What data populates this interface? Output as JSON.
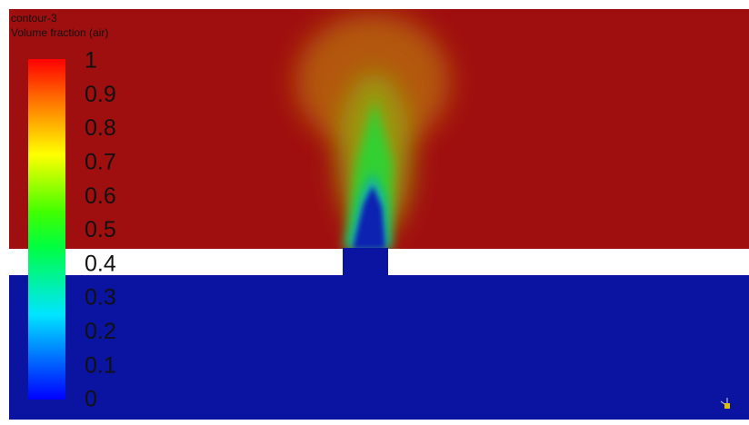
{
  "header": {
    "name": "contour-3",
    "field": "Volume fraction (air)"
  },
  "colorbar": {
    "ticks": [
      0,
      0.1,
      0.2,
      0.3,
      0.4,
      0.5,
      0.6,
      0.7,
      0.8,
      0.9,
      1
    ]
  }
}
